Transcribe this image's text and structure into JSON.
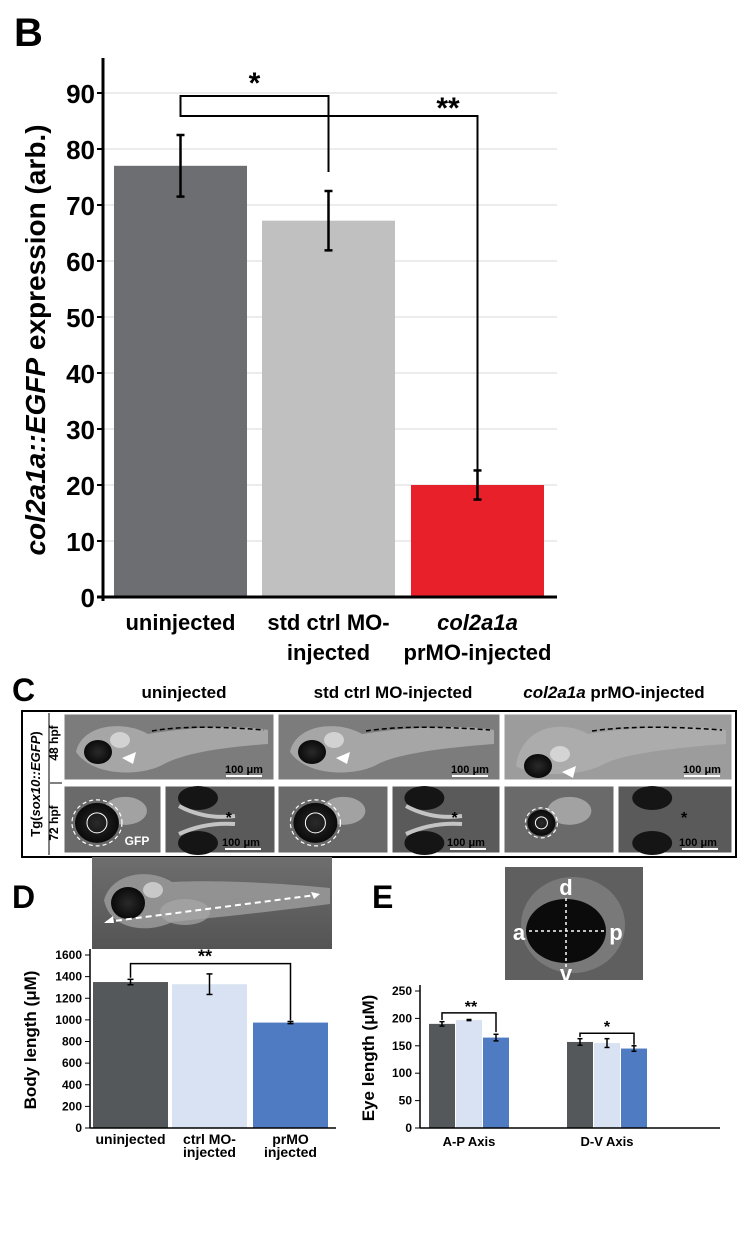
{
  "panels": {
    "B": "B",
    "C": "C",
    "D": "D",
    "E": "E"
  },
  "colors": {
    "dark_gray": "#6d6e72",
    "light_gray": "#c0c0c0",
    "red": "#e8202a",
    "d_dark": "#55585a",
    "d_light": "#d8e2f2",
    "d_blue": "#4f7bc2"
  },
  "panel_c": {
    "col_headers": [
      {
        "italic": "",
        "text": "uninjected"
      },
      {
        "italic": "",
        "text": "std ctrl MO-injected"
      },
      {
        "italic": "col2a1a",
        "text": " prMO-injected"
      }
    ],
    "row_label": {
      "prefix": "Tg(",
      "italic": "sox10::EGFP",
      "suffix": ")"
    },
    "row_48": "48 hpf",
    "row_72": "72 hpf",
    "scale_bar": "100 μm",
    "gfp": "GFP",
    "asterisk": "*"
  },
  "panel_e_image_labels": {
    "d": "d",
    "a": "a",
    "p": "p",
    "v": "v"
  },
  "chart_data": [
    {
      "panel": "B",
      "type": "bar",
      "categories": [
        {
          "line1_italic": "",
          "line1": "uninjected",
          "line2": ""
        },
        {
          "line1_italic": "",
          "line1": "std ctrl MO-",
          "line2": "injected"
        },
        {
          "line1_italic": "col2a1a",
          "line1": "",
          "line2": "prMO-injected"
        }
      ],
      "values": [
        77,
        67.2,
        20
      ],
      "errors": [
        5.5,
        5.3,
        2.6
      ],
      "ylabel": {
        "italic": "col2a1a::EGFP",
        "text": " expression (arb.)"
      },
      "ylim": [
        0,
        90
      ],
      "yticks": [
        0,
        10,
        20,
        30,
        40,
        50,
        60,
        70,
        80,
        90
      ],
      "grid": true,
      "significance": [
        {
          "from": 0,
          "to": 1,
          "label": "*"
        },
        {
          "from": 0,
          "to": 2,
          "label": "**"
        }
      ]
    },
    {
      "panel": "D",
      "type": "bar",
      "categories": [
        {
          "line1": "uninjected",
          "line2": ""
        },
        {
          "line1": "ctrl MO-",
          "line2": "injected"
        },
        {
          "line1": "prMO",
          "line2": "injected"
        }
      ],
      "values": [
        1350,
        1330,
        975
      ],
      "errors": [
        25,
        95,
        10
      ],
      "ylabel": "Body length (μM)",
      "ylim": [
        0,
        1600
      ],
      "yticks": [
        0,
        200,
        400,
        600,
        800,
        1000,
        1200,
        1400,
        1600
      ],
      "significance": [
        {
          "from": 0,
          "to": 2,
          "label": "**"
        }
      ]
    },
    {
      "panel": "E",
      "type": "bar",
      "categories": [
        "A-P Axis",
        "D-V Axis"
      ],
      "series": [
        {
          "values": [
            190,
            157
          ],
          "errors": [
            4,
            6
          ]
        },
        {
          "values": [
            197,
            155
          ],
          "errors": [
            1,
            8
          ]
        },
        {
          "values": [
            165,
            145
          ],
          "errors": [
            6,
            5
          ]
        }
      ],
      "ylabel": "Eye length (μM)",
      "ylim": [
        0,
        250
      ],
      "yticks": [
        0,
        50,
        100,
        150,
        200,
        250
      ],
      "significance": [
        {
          "group": 0,
          "from": 0,
          "to": 2,
          "label": "**"
        },
        {
          "group": 1,
          "from": 0,
          "to": 2,
          "label": "*"
        }
      ]
    }
  ]
}
